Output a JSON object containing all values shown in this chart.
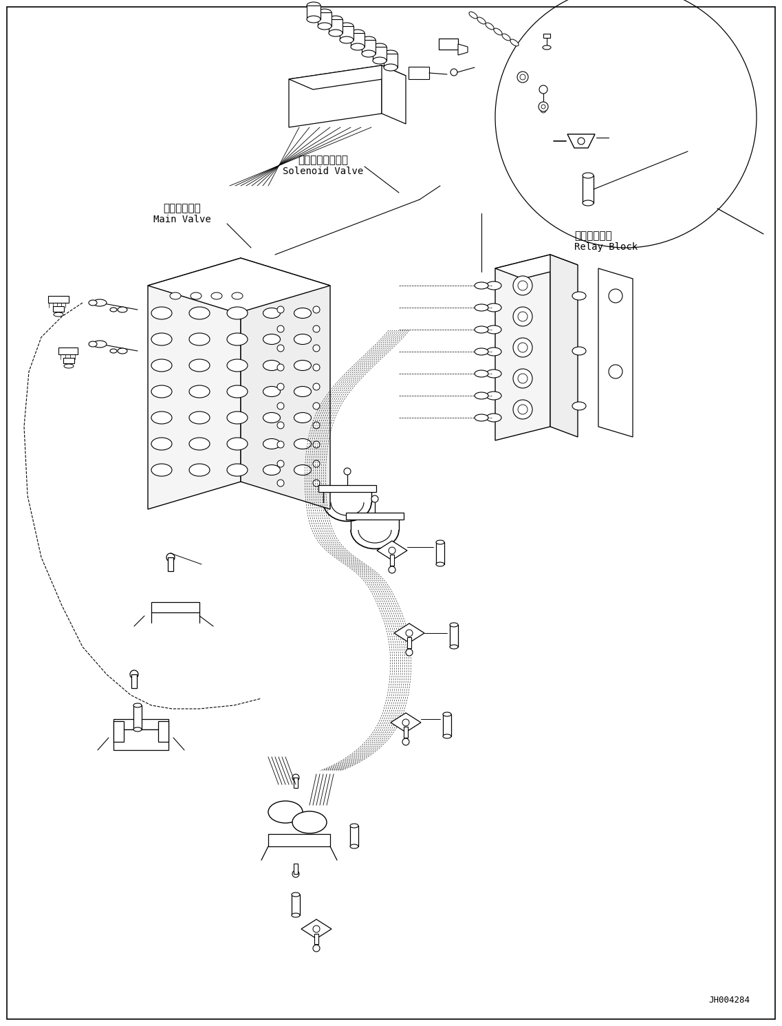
{
  "background_color": "#ffffff",
  "line_color": "#000000",
  "label_solenoid_jp": "ソレノイドバルブ",
  "label_solenoid_en": "Solenoid Valve",
  "label_main_jp": "メインバルブ",
  "label_main_en": "Main Valve",
  "label_relay_jp": "中継ブロック",
  "label_relay_en": "Relay Block",
  "part_number": "JH004284",
  "font_size_label": 11,
  "font_size_partnumber": 9
}
